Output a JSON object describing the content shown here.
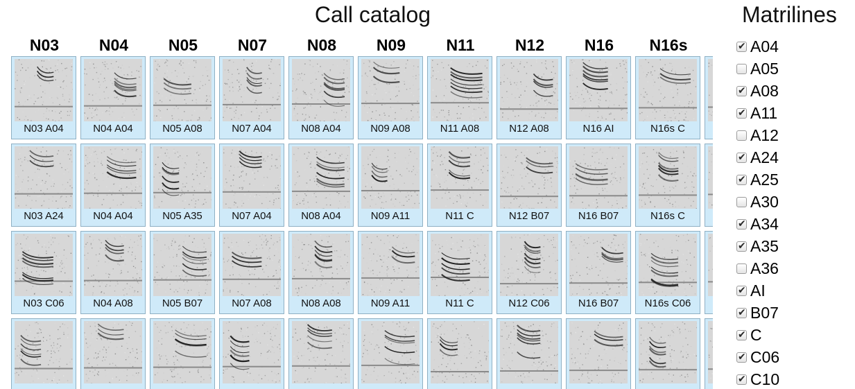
{
  "catalog": {
    "title": "Call catalog",
    "columns": [
      "N03",
      "N04",
      "N05",
      "N07",
      "N08",
      "N09",
      "N11",
      "N12",
      "N16",
      "N16s"
    ],
    "rows": [
      [
        "N03 A04",
        "N04 A04",
        "N05 A08",
        "N07 A04",
        "N08 A04",
        "N09 A08",
        "N11 A08",
        "N12 A08",
        "N16 AI",
        "N16s C"
      ],
      [
        "N03 A24",
        "N04 A04",
        "N05 A35",
        "N07 A04",
        "N08 A04",
        "N09 A11",
        "N11 C",
        "N12 B07",
        "N16 B07",
        "N16s C"
      ],
      [
        "N03 C06",
        "N04 A08",
        "N05 B07",
        "N07 A08",
        "N08 A08",
        "N09 A11",
        "N11 C",
        "N12 C06",
        "N16 B07",
        "N16s C06"
      ],
      [
        "",
        "",
        "",
        "",
        "",
        "",
        "",
        "",
        "",
        ""
      ]
    ]
  },
  "matrilines": {
    "title": "Matrilines",
    "items": [
      {
        "label": "A04",
        "checked": true
      },
      {
        "label": "A05",
        "checked": false
      },
      {
        "label": "A08",
        "checked": true
      },
      {
        "label": "A11",
        "checked": true
      },
      {
        "label": "A12",
        "checked": false
      },
      {
        "label": "A24",
        "checked": true
      },
      {
        "label": "A25",
        "checked": true
      },
      {
        "label": "A30",
        "checked": false
      },
      {
        "label": "A34",
        "checked": true
      },
      {
        "label": "A35",
        "checked": true
      },
      {
        "label": "A36",
        "checked": false
      },
      {
        "label": "AI",
        "checked": true
      },
      {
        "label": "B07",
        "checked": true
      },
      {
        "label": "C",
        "checked": true
      },
      {
        "label": "C06",
        "checked": true
      },
      {
        "label": "C10",
        "checked": true
      }
    ]
  },
  "colors": {
    "cell_background": "#cfeaf9",
    "cell_border": "#8fb0c4",
    "spectrogram_background": "#d7d7d7",
    "spectrogram_ink": "#1e1e1e"
  },
  "icons": {
    "checkbox_checked": "check-icon",
    "spectrogram": "spectrogram-thumbnail"
  }
}
